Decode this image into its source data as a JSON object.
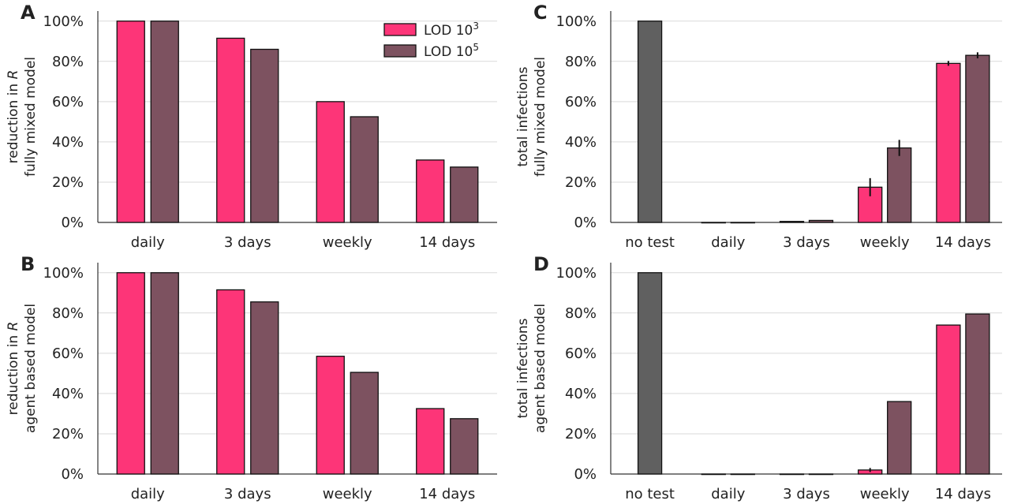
{
  "colors": {
    "lod3": "#fd3578",
    "lod5": "#7d5260",
    "notest": "#606060"
  },
  "legend": {
    "lod3": {
      "base": "LOD 10",
      "sup": "3"
    },
    "lod5": {
      "base": "LOD 10",
      "sup": "5"
    }
  },
  "chart_data": [
    {
      "type": "bar",
      "panel": "A",
      "ylabel_lines": [
        "reduction in R",
        "fully mixed model"
      ],
      "ylabel_italic_word": "R",
      "categories": [
        "daily",
        "3 days",
        "weekly",
        "14 days"
      ],
      "ylim": [
        0,
        105
      ],
      "yticks": [
        "0%",
        "20%",
        "40%",
        "60%",
        "80%",
        "100%"
      ],
      "grid": true,
      "legend": "top-right",
      "series": [
        {
          "name": "LOD 10^3",
          "color_key": "lod3",
          "values": [
            100,
            91.5,
            60,
            31
          ]
        },
        {
          "name": "LOD 10^5",
          "color_key": "lod5",
          "values": [
            100,
            86,
            52.5,
            27.5
          ]
        }
      ]
    },
    {
      "type": "bar",
      "panel": "B",
      "ylabel_lines": [
        "reduction in R",
        "agent based model"
      ],
      "ylabel_italic_word": "R",
      "categories": [
        "daily",
        "3 days",
        "weekly",
        "14 days"
      ],
      "ylim": [
        0,
        105
      ],
      "yticks": [
        "0%",
        "20%",
        "40%",
        "60%",
        "80%",
        "100%"
      ],
      "grid": true,
      "series": [
        {
          "name": "LOD 10^3",
          "color_key": "lod3",
          "values": [
            100,
            91.5,
            58.5,
            32.5
          ]
        },
        {
          "name": "LOD 10^5",
          "color_key": "lod5",
          "values": [
            100,
            85.5,
            50.5,
            27.5
          ]
        }
      ]
    },
    {
      "type": "bar",
      "panel": "C",
      "ylabel_lines": [
        "total infections",
        "fully mixed model"
      ],
      "categories": [
        "no test",
        "daily",
        "3 days",
        "weekly",
        "14 days"
      ],
      "ylim": [
        0,
        105
      ],
      "yticks": [
        "0%",
        "20%",
        "40%",
        "60%",
        "80%",
        "100%"
      ],
      "grid": true,
      "notest_value": 100,
      "series": [
        {
          "name": "LOD 10^3",
          "color_key": "lod3",
          "values": [
            null,
            0,
            0.5,
            17.5,
            79
          ],
          "errors": [
            null,
            0,
            0,
            4.5,
            1.2
          ]
        },
        {
          "name": "LOD 10^5",
          "color_key": "lod5",
          "values": [
            null,
            0,
            1,
            37,
            83
          ],
          "errors": [
            null,
            0,
            0,
            4,
            1.5
          ]
        }
      ]
    },
    {
      "type": "bar",
      "panel": "D",
      "ylabel_lines": [
        "total infections",
        "agent based model"
      ],
      "categories": [
        "no test",
        "daily",
        "3 days",
        "weekly",
        "14 days"
      ],
      "ylim": [
        0,
        105
      ],
      "yticks": [
        "0%",
        "20%",
        "40%",
        "60%",
        "80%",
        "100%"
      ],
      "grid": true,
      "notest_value": 100,
      "series": [
        {
          "name": "LOD 10^3",
          "color_key": "lod3",
          "values": [
            null,
            0,
            0,
            2,
            74
          ],
          "errors": [
            null,
            0,
            0,
            1,
            0
          ]
        },
        {
          "name": "LOD 10^5",
          "color_key": "lod5",
          "values": [
            null,
            0,
            0,
            36,
            79.5
          ],
          "errors": [
            null,
            0,
            0,
            0,
            0
          ]
        }
      ]
    }
  ]
}
